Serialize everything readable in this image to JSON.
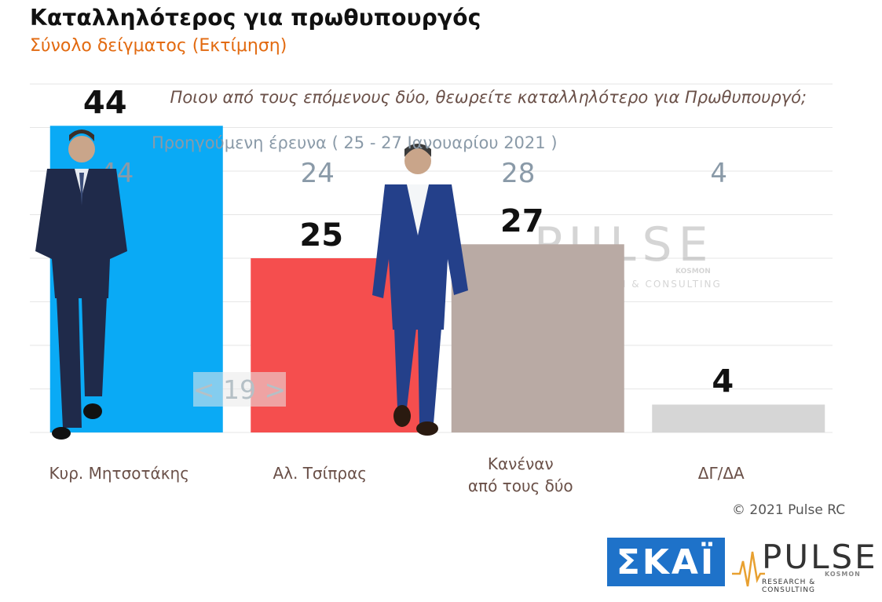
{
  "header": {
    "title": "Καταλληλότερος για πρωθυπουργός",
    "subtitle": "Σύνολο δείγματος   (Εκτίμηση)"
  },
  "question": "Ποιον από τους επόμενους δύο, θεωρείτε καταλληλότερο για Πρωθυπουργό;",
  "previous_survey_label": "Προηγούμενη έρευνα  ( 25 - 27  Ιανουαρίου  2021 )",
  "difference_label": "< 19 >",
  "watermark": {
    "brand": "PULSE",
    "tagline": "RESEARCH & CONSULTING",
    "sub": "KOSMON"
  },
  "footer": {
    "copyright": "© 2021 Pulse RC",
    "skai_logo": "ΣΚΑΪ",
    "pulse_logo": "PULSE",
    "pulse_sub": "KOSMON",
    "pulse_tagline": "RESEARCH & CONSULTING"
  },
  "colors": {
    "bar_mitsotakis": "#0aaaf5",
    "bar_tsipras": "#f54e4e",
    "bar_none": "#b9aaa4",
    "bar_dk": "#d6d6d6",
    "previous_values": "#8a9aa8",
    "category_labels": "#6a5048",
    "accent_orange": "#e26a10",
    "skai_blue": "#1e72c9"
  },
  "chart_data": {
    "type": "bar",
    "categories": [
      [
        "Κυρ. Μητσοτάκης"
      ],
      [
        "Αλ. Τσίπρας"
      ],
      [
        "Κανέναν",
        "από τους δύο"
      ],
      [
        "ΔΓ/ΔΑ"
      ]
    ],
    "values": [
      44,
      25,
      27,
      4
    ],
    "previous_values": [
      44,
      24,
      28,
      4
    ],
    "ylim": [
      0,
      50
    ],
    "grid": true,
    "title": "Καταλληλότερος για πρωθυπουργός",
    "xlabel": "",
    "ylabel": ""
  },
  "icons": [
    "mitsotakis-photo",
    "tsipras-photo",
    "pulse-heartbeat-icon",
    "skai-logo"
  ]
}
